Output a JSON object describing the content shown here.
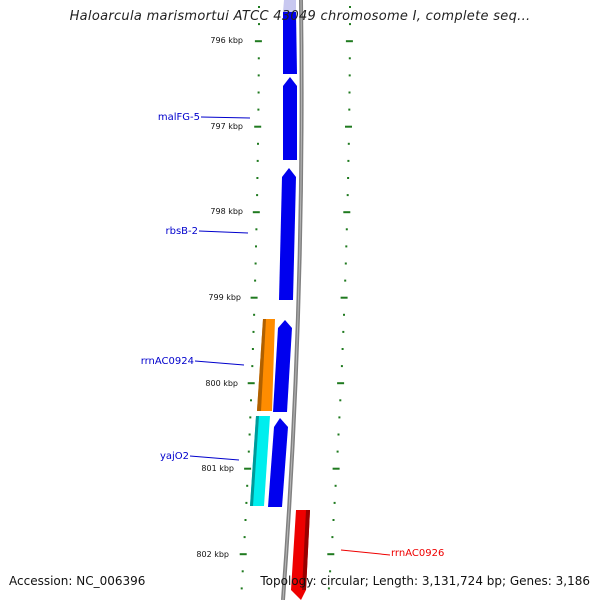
{
  "title": "Haloarcula marismortui ATCC 43049 chromosome I, complete seq...",
  "accession": "Accession: NC_006396",
  "summary": "Topology: circular; Length: 3,131,724 bp; Genes: 3,186",
  "scale_labels": [
    "796 kbp",
    "797 kbp",
    "798 kbp",
    "799 kbp",
    "800 kbp",
    "801 kbp",
    "802 kbp"
  ],
  "gene_labels": [
    {
      "name": "malFG-5",
      "color": "#0000cc"
    },
    {
      "name": "rbsB-2",
      "color": "#0000cc"
    },
    {
      "name": "rrnAC0924",
      "color": "#0000cc"
    },
    {
      "name": "yajO2",
      "color": "#0000cc"
    },
    {
      "name": "rrnAC0926",
      "color": "#ee0000"
    }
  ],
  "colors": {
    "backbone": "#808080",
    "forward_gene": "#0000ee",
    "orange_feature": "#ff8c00",
    "cyan_feature": "#00eeee",
    "reverse_gene": "#ee0000",
    "tick": "#1f7a1f"
  }
}
